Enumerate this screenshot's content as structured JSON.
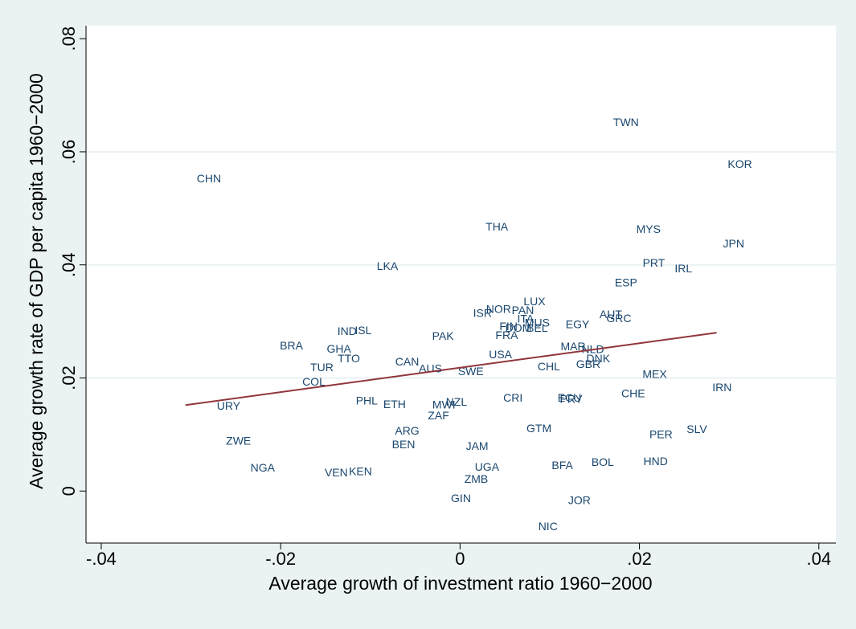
{
  "chart_data": {
    "type": "scatter",
    "x_label": "Average growth of investment ratio 1960−2000",
    "y_label": "Average growth rate of GDP per capita 1960−2000",
    "xlim": [
      -0.0417,
      0.0419
    ],
    "ylim": [
      -0.0092,
      0.0823
    ],
    "xticks": [
      {
        "value": -0.04,
        "label": "-.04"
      },
      {
        "value": -0.02,
        "label": "-.02"
      },
      0,
      {
        "value": 0.02,
        "label": ".02"
      },
      {
        "value": 0.04,
        "label": ".04"
      }
    ],
    "yticks": [
      0,
      {
        "value": 0.02,
        "label": ".02"
      },
      {
        "value": 0.04,
        "label": ".04"
      },
      {
        "value": 0.06,
        "label": ".06"
      },
      {
        "value": 0.08,
        "label": ".08"
      }
    ],
    "grid": true,
    "points": {
      "color": "#1a476f",
      "labels": [
        "TWN",
        "KOR",
        "CHN",
        "THA",
        "MYS",
        "JPN",
        "LKA",
        "PRT",
        "IRL",
        "ESP",
        "LUX",
        "NOR",
        "PAN",
        "ISR",
        "AUT",
        "GRC",
        "ITA",
        "MUS",
        "EGY",
        "FIN",
        "DOM",
        "BEL",
        "IND",
        "ISL",
        "FRA",
        "PAK",
        "BRA",
        "GHA",
        "MAR",
        "NLD",
        "USA",
        "TTO",
        "DNK",
        "GBR",
        "CAN",
        "CHL",
        "TUR",
        "AUS",
        "SWE",
        "MEX",
        "COL",
        "IRN",
        "CHE",
        "CRI",
        "ECU",
        "PRY",
        "PHL",
        "NZL",
        "ETH",
        "MWI",
        "URY",
        "ZAF",
        "GTM",
        "SLV",
        "ARG",
        "PER",
        "ZWE",
        "BEN",
        "JAM",
        "HND",
        "BOL",
        "BFA",
        "UGA",
        "NGA",
        "VEN",
        "KEN",
        "ZMB",
        "GIN",
        "JOR",
        "NIC"
      ],
      "x": [
        0.0185,
        0.0312,
        -0.028,
        0.0041,
        0.021,
        0.0305,
        -0.0081,
        0.0216,
        0.0249,
        0.0185,
        0.0083,
        0.0043,
        0.007,
        0.0025,
        0.0168,
        0.0177,
        0.0073,
        0.0086,
        0.0131,
        0.0054,
        0.0065,
        0.0086,
        -0.0126,
        -0.0108,
        0.0052,
        -0.0019,
        -0.0188,
        -0.0135,
        0.0126,
        0.0148,
        0.0045,
        -0.0124,
        0.0154,
        0.0143,
        -0.0059,
        0.0099,
        -0.0154,
        -0.0033,
        0.0012,
        0.0217,
        -0.0163,
        0.0292,
        0.0193,
        0.0059,
        0.0122,
        0.0124,
        -0.0104,
        -0.0004,
        -0.0073,
        -0.0018,
        -0.0258,
        -0.0024,
        0.0088,
        0.0264,
        -0.0059,
        0.0224,
        -0.0247,
        -0.0063,
        0.0019,
        0.0218,
        0.0159,
        0.0114,
        0.003,
        -0.022,
        -0.0138,
        -0.0111,
        0.0018,
        0.0001,
        0.0133,
        0.0098
      ],
      "y": [
        0.0651,
        0.0577,
        0.0551,
        0.0466,
        0.0462,
        0.0436,
        0.0396,
        0.0402,
        0.0392,
        0.0367,
        0.0334,
        0.032,
        0.0318,
        0.0313,
        0.0311,
        0.0304,
        0.0303,
        0.0296,
        0.0293,
        0.029,
        0.0287,
        0.0287,
        0.0281,
        0.0283,
        0.0274,
        0.0273,
        0.0256,
        0.025,
        0.0254,
        0.0249,
        0.024,
        0.0233,
        0.0233,
        0.0223,
        0.0227,
        0.0219,
        0.0217,
        0.0215,
        0.021,
        0.0205,
        0.0192,
        0.0182,
        0.0171,
        0.0163,
        0.0163,
        0.0161,
        0.0158,
        0.0156,
        0.0152,
        0.0151,
        0.0149,
        0.0132,
        0.0109,
        0.0108,
        0.0105,
        0.0099,
        0.0087,
        0.0081,
        0.0078,
        0.0051,
        0.005,
        0.0044,
        0.0041,
        0.004,
        0.0031,
        0.0033,
        0.002,
        -0.0014,
        -0.0018,
        -0.0064
      ]
    },
    "fit": {
      "color": "#90353b",
      "x": [
        -0.0306,
        0.0286
      ],
      "y": [
        0.0152,
        0.028
      ]
    }
  }
}
